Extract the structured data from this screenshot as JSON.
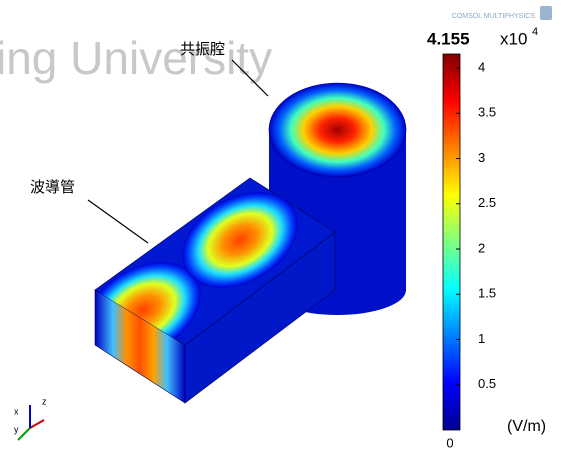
{
  "watermark": "ing University",
  "logo": "COMSOL MULTIPHYSICS",
  "labels": {
    "cavity": "共振腔",
    "waveguide": "波導管"
  },
  "axes": {
    "x": "x",
    "y": "y",
    "z": "z"
  },
  "colorbar": {
    "range": [
      0,
      4.155
    ],
    "max_label": "4.155",
    "multiplier": "x10",
    "exponent": "4",
    "min_label": "0",
    "ticks": [
      0.5,
      1,
      1.5,
      2,
      2.5,
      3,
      3.5,
      4
    ],
    "unit": "(V/m)"
  }
}
